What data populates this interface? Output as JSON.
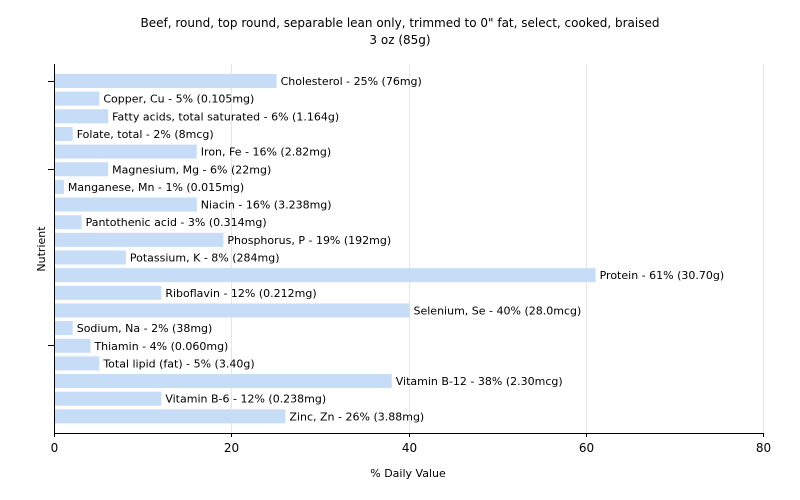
{
  "chart_data": {
    "type": "bar",
    "orientation": "horizontal",
    "title": "Beef, round, top round, separable lean only, trimmed to 0\" fat, select, cooked, braised",
    "subtitle": "3 oz (85g)",
    "xlabel": "% Daily Value",
    "ylabel": "Nutrient",
    "xlim": [
      0,
      80
    ],
    "xticks": [
      0,
      20,
      40,
      60,
      80
    ],
    "grid": true,
    "legend": "none",
    "bar_color": "#c6dcf7",
    "categories": [
      "Cholesterol",
      "Copper, Cu",
      "Fatty acids, total saturated",
      "Folate, total",
      "Iron, Fe",
      "Magnesium, Mg",
      "Manganese, Mn",
      "Niacin",
      "Pantothenic acid",
      "Phosphorus, P",
      "Potassium, K",
      "Protein",
      "Riboflavin",
      "Selenium, Se",
      "Sodium, Na",
      "Thiamin",
      "Total lipid (fat)",
      "Vitamin B-12",
      "Vitamin B-6",
      "Zinc, Zn"
    ],
    "values": [
      25,
      5,
      6,
      2,
      16,
      6,
      1,
      16,
      3,
      19,
      8,
      61,
      12,
      40,
      2,
      4,
      5,
      38,
      12,
      26
    ],
    "labels": [
      "Cholesterol - 25% (76mg)",
      "Copper, Cu - 5% (0.105mg)",
      "Fatty acids, total saturated - 6% (1.164g)",
      "Folate, total - 2% (8mcg)",
      "Iron, Fe - 16% (2.82mg)",
      "Magnesium, Mg - 6% (22mg)",
      "Manganese, Mn - 1% (0.015mg)",
      "Niacin - 16% (3.238mg)",
      "Pantothenic acid - 3% (0.314mg)",
      "Phosphorus, P - 19% (192mg)",
      "Potassium, K - 8% (284mg)",
      "Protein - 61% (30.70g)",
      "Riboflavin - 12% (0.212mg)",
      "Selenium, Se - 40% (28.0mcg)",
      "Sodium, Na - 2% (38mg)",
      "Thiamin - 4% (0.060mg)",
      "Total lipid (fat) - 5% (3.40g)",
      "Vitamin B-12 - 38% (2.30mcg)",
      "Vitamin B-6 - 12% (0.238mg)",
      "Zinc, Zn - 26% (3.88mg)"
    ]
  }
}
